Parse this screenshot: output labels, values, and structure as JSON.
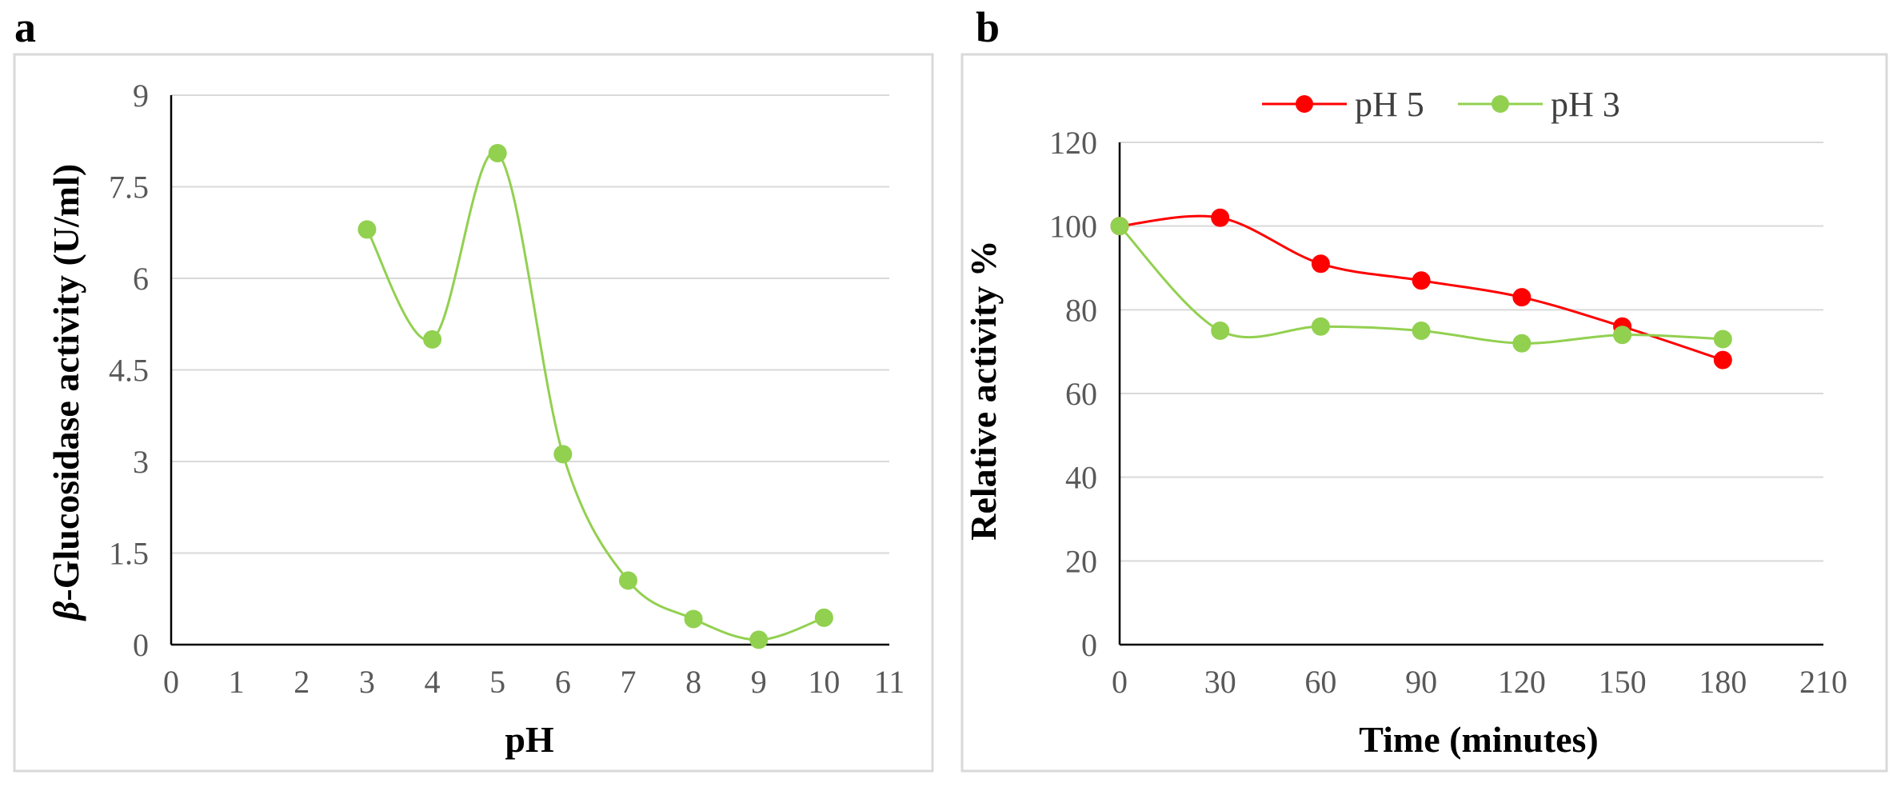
{
  "chart_data": [
    {
      "panel": "a",
      "type": "line",
      "title": "",
      "xlabel": "pH",
      "ylabel_symbol": "β",
      "ylabel": "-Glucosidase activity (U/ml)",
      "xlim": [
        0,
        11
      ],
      "ylim": [
        0,
        9
      ],
      "xticks": [
        "0",
        "1",
        "2",
        "3",
        "4",
        "5",
        "6",
        "7",
        "8",
        "9",
        "10",
        "11"
      ],
      "yticks": [
        "0",
        "1.5",
        "3",
        "4.5",
        "6",
        "7.5",
        "9"
      ],
      "grid": "horizontal",
      "legend": "none",
      "series": [
        {
          "name": "",
          "color": "#92d050",
          "x": [
            3,
            4,
            5,
            6,
            7,
            8,
            9,
            10
          ],
          "y": [
            6.8,
            5.0,
            8.05,
            3.12,
            1.05,
            0.42,
            0.08,
            0.44
          ]
        }
      ]
    },
    {
      "panel": "b",
      "type": "line",
      "title": "",
      "xlabel": "Time (minutes)",
      "ylabel": "Relative activity %",
      "xlim": [
        0,
        210
      ],
      "ylim": [
        0,
        120
      ],
      "xticks": [
        "0",
        "30",
        "60",
        "90",
        "120",
        "150",
        "180",
        "210"
      ],
      "yticks": [
        "0",
        "20",
        "40",
        "60",
        "80",
        "100",
        "120"
      ],
      "grid": "horizontal",
      "legend": "top",
      "series": [
        {
          "name": "pH 5",
          "color": "#ff0000",
          "x": [
            0,
            30,
            60,
            90,
            120,
            150,
            180
          ],
          "y": [
            100,
            102,
            91,
            87,
            83,
            76,
            68
          ]
        },
        {
          "name": "pH 3",
          "color": "#92d050",
          "x": [
            0,
            30,
            60,
            90,
            120,
            150,
            180
          ],
          "y": [
            100,
            75,
            76,
            75,
            72,
            74,
            73
          ]
        }
      ]
    }
  ]
}
